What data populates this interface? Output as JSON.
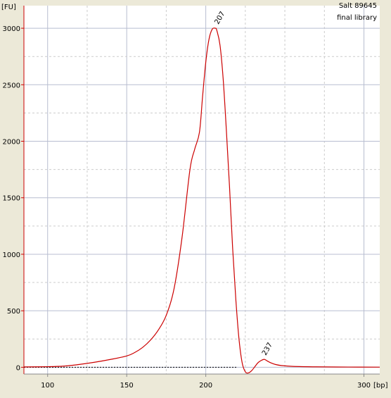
{
  "chart_data": {
    "type": "line",
    "title": "",
    "xlabel": "[bp]",
    "ylabel": "[FU]",
    "sample_name": "Salt 89645",
    "sample_note": "final library",
    "xlim": [
      85,
      310
    ],
    "ylim": [
      -60,
      3200
    ],
    "x_ticks": [
      100,
      150,
      200,
      300
    ],
    "y_ticks": [
      0,
      500,
      1000,
      1500,
      2000,
      2500,
      3000
    ],
    "grid": true,
    "legend": "none",
    "colors": {
      "trace": "#cc0000",
      "baseline": "#000000",
      "background": "#ffffff",
      "axis": "#cc0000"
    },
    "baseline_x_range": [
      85,
      220
    ],
    "peaks": [
      {
        "x": 207,
        "y": 3000,
        "label": "207"
      },
      {
        "x": 237,
        "y": 70,
        "label": "237"
      }
    ],
    "series": [
      {
        "x": [
          85,
          100,
          110,
          120,
          130,
          140,
          150,
          155,
          160,
          165,
          170,
          175,
          180,
          185,
          190,
          193,
          196,
          198,
          200,
          202,
          204,
          206,
          207,
          209,
          211,
          213,
          215,
          217,
          219,
          221,
          223,
          225,
          227,
          229,
          231,
          233,
          235,
          237,
          239,
          241,
          244,
          248,
          255,
          270,
          290,
          310
        ],
        "y": [
          3,
          5,
          10,
          25,
          45,
          70,
          100,
          130,
          175,
          240,
          330,
          460,
          700,
          1150,
          1750,
          1930,
          2080,
          2400,
          2700,
          2900,
          2990,
          3000,
          2980,
          2850,
          2550,
          2100,
          1600,
          1050,
          600,
          250,
          40,
          -40,
          -50,
          -30,
          5,
          40,
          60,
          70,
          55,
          40,
          25,
          15,
          8,
          4,
          2,
          1
        ]
      }
    ]
  }
}
